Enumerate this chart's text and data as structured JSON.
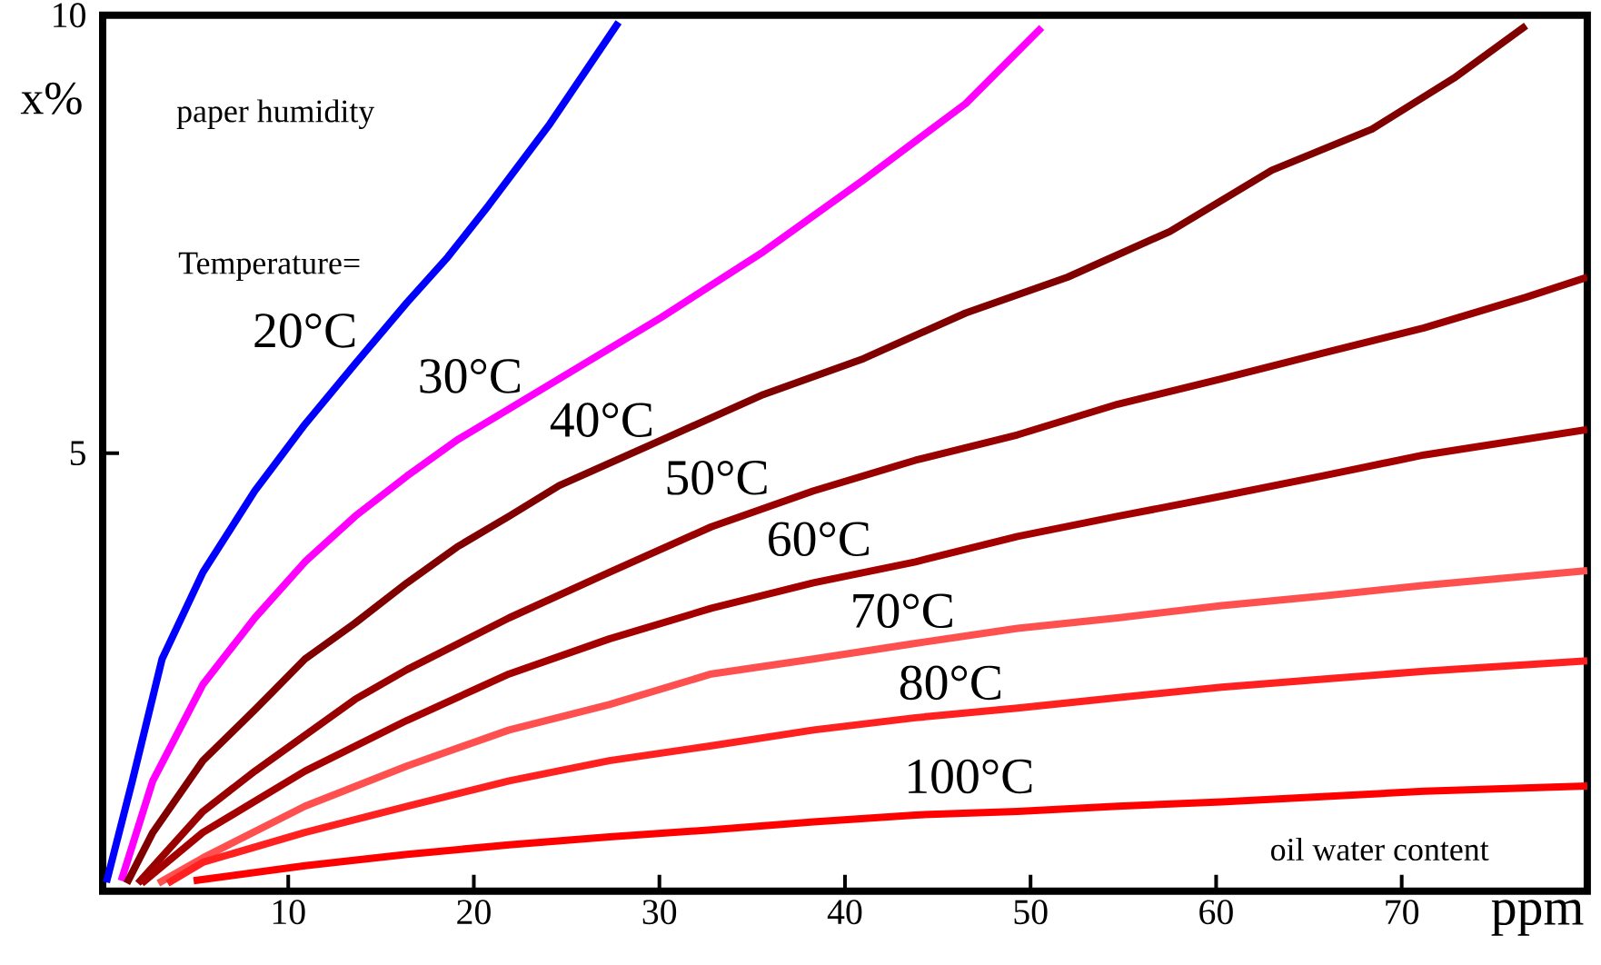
{
  "chart_data": {
    "type": "line",
    "xlabel": "ppm",
    "ylabel": "x%",
    "xlim": [
      0,
      80
    ],
    "ylim": [
      0,
      10
    ],
    "xticks": [
      10,
      20,
      30,
      40,
      50,
      60,
      70
    ],
    "yticks": [
      5,
      10
    ],
    "grid": false,
    "marker": "none",
    "line_style": "solid",
    "annotations": [
      "paper humidity",
      "Temperature=",
      "oil water content"
    ],
    "series": [
      {
        "name": "20°C",
        "color": "#0000ff",
        "x": [
          0.2,
          1.6,
          3.2,
          5.4,
          8.2,
          10.9,
          13.6,
          16.4,
          18.6,
          20.8,
          24.1,
          27.8
        ],
        "values": [
          0.1,
          1.26,
          2.65,
          3.64,
          4.57,
          5.33,
          6.02,
          6.72,
          7.24,
          7.83,
          8.76,
          9.92
        ]
      },
      {
        "name": "30°C",
        "color": "#ff00ff",
        "x": [
          1.0,
          2.7,
          5.4,
          8.2,
          10.9,
          13.6,
          16.4,
          19.1,
          24.6,
          30.1,
          35.6,
          41.0,
          46.5,
          50.6
        ],
        "values": [
          0.12,
          1.26,
          2.36,
          3.12,
          3.76,
          4.28,
          4.74,
          5.15,
          5.85,
          6.55,
          7.3,
          8.12,
          8.99,
          9.86
        ]
      },
      {
        "name": "40°C",
        "color": "#800000",
        "x": [
          1.3,
          2.7,
          5.4,
          8.2,
          10.9,
          13.6,
          16.4,
          19.1,
          21.9,
          24.6,
          30.1,
          35.6,
          41.0,
          46.5,
          52.0,
          57.5,
          63.0,
          68.4,
          72.8,
          76.7
        ],
        "values": [
          0.09,
          0.67,
          1.49,
          2.07,
          2.65,
          3.06,
          3.52,
          3.93,
          4.28,
          4.63,
          5.15,
          5.67,
          6.08,
          6.6,
          7.01,
          7.53,
          8.23,
          8.7,
          9.28,
          9.88
        ]
      },
      {
        "name": "50°C",
        "color": "#990000",
        "x": [
          1.9,
          5.4,
          8.2,
          10.9,
          13.6,
          16.4,
          21.9,
          27.3,
          32.8,
          38.3,
          43.8,
          49.3,
          54.7,
          60.3,
          65.7,
          71.2,
          76.7,
          80
        ],
        "values": [
          0.09,
          0.91,
          1.37,
          1.78,
          2.19,
          2.53,
          3.12,
          3.64,
          4.16,
          4.57,
          4.92,
          5.21,
          5.56,
          5.85,
          6.14,
          6.43,
          6.78,
          7.01
        ]
      },
      {
        "name": "60°C",
        "color": "#a50000",
        "x": [
          2.1,
          5.4,
          10.9,
          16.4,
          21.9,
          27.3,
          32.8,
          38.3,
          43.8,
          49.3,
          54.7,
          60.3,
          65.7,
          71.2,
          80
        ],
        "values": [
          0.09,
          0.67,
          1.37,
          1.95,
          2.48,
          2.88,
          3.23,
          3.52,
          3.76,
          4.05,
          4.28,
          4.51,
          4.74,
          4.98,
          5.27
        ]
      },
      {
        "name": "70°C",
        "color": "#ff5050",
        "x": [
          3.0,
          5.4,
          10.9,
          16.4,
          21.9,
          27.3,
          32.8,
          38.3,
          43.8,
          49.3,
          54.7,
          60.3,
          65.7,
          71.2,
          80
        ],
        "values": [
          0.09,
          0.38,
          0.97,
          1.43,
          1.84,
          2.13,
          2.48,
          2.65,
          2.83,
          3.0,
          3.12,
          3.26,
          3.37,
          3.49,
          3.66
        ]
      },
      {
        "name": "80°C",
        "color": "#ff2020",
        "x": [
          3.5,
          5.4,
          10.9,
          16.4,
          21.9,
          27.3,
          32.8,
          38.3,
          43.8,
          49.3,
          54.7,
          60.3,
          65.7,
          71.2,
          80
        ],
        "values": [
          0.09,
          0.33,
          0.67,
          0.97,
          1.26,
          1.49,
          1.66,
          1.84,
          1.98,
          2.09,
          2.21,
          2.33,
          2.42,
          2.51,
          2.63
        ]
      },
      {
        "name": "100°C",
        "color": "#ff0000",
        "x": [
          4.9,
          10.9,
          16.4,
          21.9,
          27.3,
          32.8,
          38.3,
          43.8,
          49.3,
          54.7,
          60.3,
          65.7,
          71.2,
          80
        ],
        "values": [
          0.12,
          0.29,
          0.42,
          0.53,
          0.62,
          0.7,
          0.79,
          0.87,
          0.91,
          0.97,
          1.02,
          1.08,
          1.14,
          1.2
        ]
      }
    ]
  }
}
